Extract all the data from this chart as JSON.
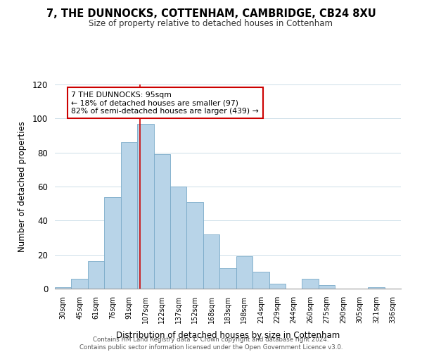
{
  "title": "7, THE DUNNOCKS, COTTENHAM, CAMBRIDGE, CB24 8XU",
  "subtitle": "Size of property relative to detached houses in Cottenham",
  "xlabel": "Distribution of detached houses by size in Cottenham",
  "ylabel": "Number of detached properties",
  "bar_color": "#b8d4e8",
  "bar_edge_color": "#7aaac8",
  "categories": [
    "30sqm",
    "45sqm",
    "61sqm",
    "76sqm",
    "91sqm",
    "107sqm",
    "122sqm",
    "137sqm",
    "152sqm",
    "168sqm",
    "183sqm",
    "198sqm",
    "214sqm",
    "229sqm",
    "244sqm",
    "260sqm",
    "275sqm",
    "290sqm",
    "305sqm",
    "321sqm",
    "336sqm"
  ],
  "values": [
    1,
    6,
    16,
    54,
    86,
    97,
    79,
    60,
    51,
    32,
    12,
    19,
    10,
    3,
    0,
    6,
    2,
    0,
    0,
    1,
    0
  ],
  "redline_x": 4.67,
  "annotation_title": "7 THE DUNNOCKS: 95sqm",
  "annotation_line1": "← 18% of detached houses are smaller (97)",
  "annotation_line2": "82% of semi-detached houses are larger (439) →",
  "annotation_box_color": "#ffffff",
  "annotation_border_color": "#cc0000",
  "redline_color": "#cc0000",
  "ylim": [
    0,
    120
  ],
  "yticks": [
    0,
    20,
    40,
    60,
    80,
    100,
    120
  ],
  "footer1": "Contains HM Land Registry data © Crown copyright and database right 2024.",
  "footer2": "Contains public sector information licensed under the Open Government Licence v3.0.",
  "background_color": "#ffffff",
  "grid_color": "#ccdde8"
}
